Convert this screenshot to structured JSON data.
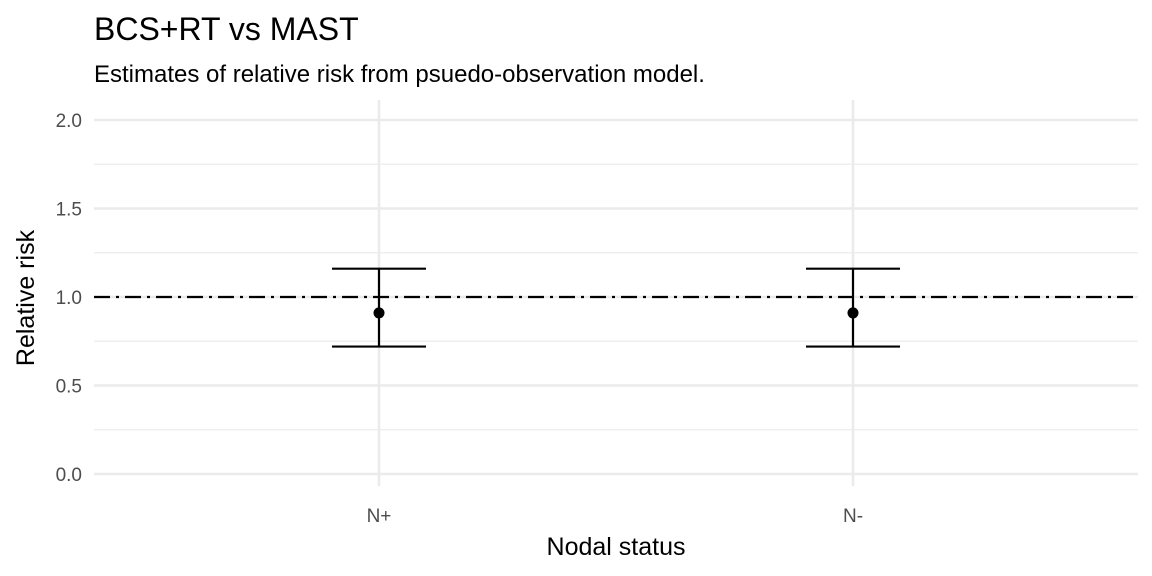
{
  "chart_data": {
    "type": "errorbar",
    "title": "BCS+RT vs MAST",
    "subtitle": "Estimates of relative risk from psuedo-observation model.",
    "xlabel": "Nodal status",
    "ylabel": "Relative risk",
    "categories": [
      "N+",
      "N-"
    ],
    "points": [
      {
        "category": "N+",
        "estimate": 0.91,
        "lower": 0.72,
        "upper": 1.16
      },
      {
        "category": "N-",
        "estimate": 0.91,
        "lower": 0.72,
        "upper": 1.16
      }
    ],
    "reference_line": {
      "y": 1.0,
      "style": "dotdash"
    },
    "ylim": [
      0,
      2.0
    ],
    "yticks": [
      0.0,
      0.5,
      1.0,
      1.5,
      2.0
    ],
    "ytick_labels": [
      "0.0",
      "0.5",
      "1.0",
      "1.5",
      "2.0"
    ],
    "grid": true,
    "colors": {
      "marks": "#000000",
      "grid": "#ebebeb",
      "tick_text": "#4d4d4d"
    }
  }
}
